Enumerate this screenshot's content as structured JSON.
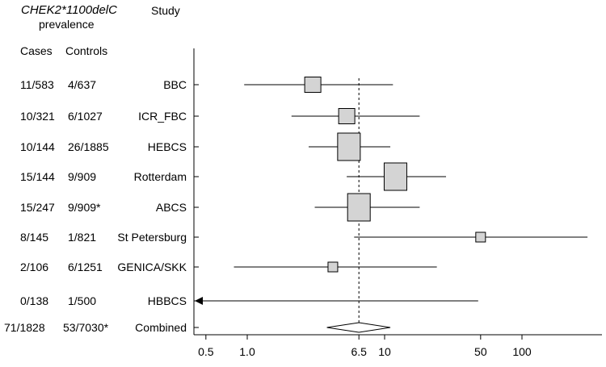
{
  "header": {
    "gene_label": "CHEK2*1100delC",
    "prevalence_label": "prevalence",
    "study_label": "Study",
    "cases_label": "Cases",
    "controls_label": "Controls"
  },
  "chart_data": {
    "type": "forest",
    "x_scale": "log",
    "xlim": [
      0.45,
      300
    ],
    "reference_line": 6.5,
    "x_ticks": [
      {
        "value": 0.5,
        "label": "0.5"
      },
      {
        "value": 1.0,
        "label": "1.0"
      },
      {
        "value": 6.5,
        "label": "6.5"
      },
      {
        "value": 10,
        "label": "10"
      },
      {
        "value": 50,
        "label": "50"
      },
      {
        "value": 100,
        "label": "100"
      }
    ],
    "studies": [
      {
        "study": "BBC",
        "cases": "11/583",
        "controls": "4/637",
        "estimate": 3.0,
        "ci_low": 0.95,
        "ci_high": 11.5,
        "box": "medium"
      },
      {
        "study": "ICR_FBC",
        "cases": "10/321",
        "controls": "6/1027",
        "estimate": 5.3,
        "ci_low": 2.1,
        "ci_high": 18,
        "box": "medium"
      },
      {
        "study": "HEBCS",
        "cases": "10/144",
        "controls": "26/1885",
        "estimate": 5.5,
        "ci_low": 2.8,
        "ci_high": 11,
        "box": "large"
      },
      {
        "study": "Rotterdam",
        "cases": "15/144",
        "controls": "9/909",
        "estimate": 12,
        "ci_low": 5.3,
        "ci_high": 28,
        "box": "large"
      },
      {
        "study": "ABCS",
        "cases": "15/247",
        "controls": "9/909*",
        "estimate": 6.5,
        "ci_low": 3.1,
        "ci_high": 18,
        "box": "large"
      },
      {
        "study": "St Petersburg",
        "cases": "8/145",
        "controls": "1/821",
        "estimate": 50,
        "ci_low": 6.0,
        "ci_high": 300,
        "box": "small"
      },
      {
        "study": "GENICA/SKK",
        "cases": "2/106",
        "controls": "6/1251",
        "estimate": 4.2,
        "ci_low": 0.8,
        "ci_high": 24,
        "box": "small"
      },
      {
        "study": "HBBCS",
        "cases": "0/138",
        "controls": "1/500",
        "estimate": null,
        "ci_low": 0.45,
        "ci_high": 48,
        "box": "none",
        "arrow_left": true
      }
    ],
    "combined": {
      "study": "Combined",
      "cases": "71/1828",
      "controls": "53/7030*",
      "estimate": 6.5,
      "ci_low": 3.8,
      "ci_high": 11
    }
  }
}
